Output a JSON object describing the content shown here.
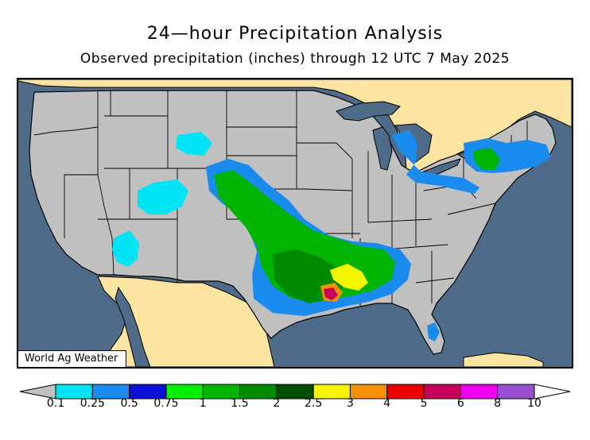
{
  "title": "24—hour Precipitation Analysis",
  "subtitle": "Observed precipitation (inches) through 12 UTC 7 May 2025",
  "watermark": "World Ag Weather",
  "colors": {
    "ocean": "#4f6b8a",
    "us_land": "#c0c0c0",
    "neighbor_land": "#fde4a0",
    "borders": "#000000"
  },
  "legend": {
    "unit": "inches",
    "labels": [
      "0.1",
      "0.25",
      "0.5",
      "0.75",
      "1",
      "1.5",
      "2",
      "2.5",
      "3",
      "4",
      "5",
      "6",
      "8",
      "10"
    ],
    "bins": [
      {
        "min": 0.1,
        "max": 0.25,
        "color": "#00e5f5"
      },
      {
        "min": 0.25,
        "max": 0.5,
        "color": "#1a8cf0"
      },
      {
        "min": 0.5,
        "max": 0.75,
        "color": "#0a10d8"
      },
      {
        "min": 0.75,
        "max": 1,
        "color": "#00f000"
      },
      {
        "min": 1,
        "max": 1.5,
        "color": "#00b400"
      },
      {
        "min": 1.5,
        "max": 2,
        "color": "#008a00"
      },
      {
        "min": 2,
        "max": 2.5,
        "color": "#004e00"
      },
      {
        "min": 2.5,
        "max": 3,
        "color": "#f5f500"
      },
      {
        "min": 3,
        "max": 4,
        "color": "#f59000"
      },
      {
        "min": 4,
        "max": 5,
        "color": "#f00000"
      },
      {
        "min": 5,
        "max": 6,
        "color": "#c8005a"
      },
      {
        "min": 6,
        "max": 8,
        "color": "#f000f0"
      },
      {
        "min": 8,
        "max": 10,
        "color": "#9650d0"
      }
    ],
    "under_color": "#c0c0c0",
    "over_color": "#ffffff"
  }
}
